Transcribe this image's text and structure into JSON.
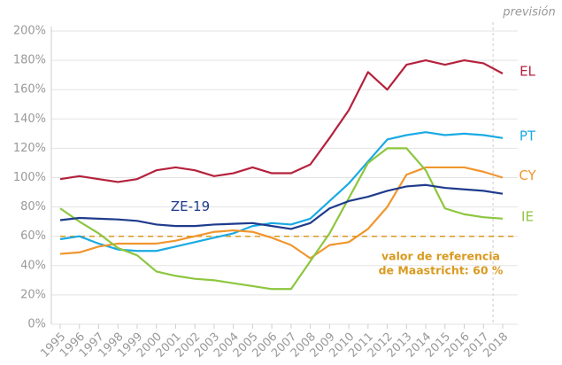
{
  "chart_data": {
    "type": "line",
    "x": [
      1995,
      1996,
      1997,
      1998,
      1999,
      2000,
      2001,
      2002,
      2003,
      2004,
      2005,
      2006,
      2007,
      2008,
      2009,
      2010,
      2011,
      2012,
      2013,
      2014,
      2015,
      2016,
      2017,
      2018
    ],
    "series": [
      {
        "name": "EL",
        "color": "#b5213c",
        "values": [
          99,
          101,
          99,
          97,
          99,
          105,
          107,
          105,
          101,
          103,
          107,
          103,
          103,
          109,
          127,
          146,
          172,
          160,
          177,
          180,
          177,
          180,
          178,
          171
        ]
      },
      {
        "name": "PT",
        "color": "#1aaae3",
        "values": [
          58,
          60,
          55,
          51,
          50,
          50,
          53,
          56,
          59,
          62,
          67,
          69,
          68,
          72,
          84,
          96,
          111,
          126,
          129,
          131,
          129,
          130,
          129,
          127
        ]
      },
      {
        "name": "CY",
        "color": "#f0962e",
        "values": [
          48,
          49,
          53,
          55,
          55,
          55,
          57,
          60,
          63,
          64,
          63,
          59,
          54,
          45,
          54,
          56,
          65,
          80,
          102,
          107,
          107,
          107,
          104,
          100
        ]
      },
      {
        "name": "IE",
        "color": "#8dc63f",
        "values": [
          79,
          70,
          62,
          52,
          47,
          36,
          33,
          31,
          30,
          28,
          26,
          24,
          24,
          43,
          62,
          86,
          110,
          120,
          120,
          105,
          79,
          75,
          73,
          72
        ]
      },
      {
        "name": "ZE-19",
        "color": "#1f3b8c",
        "values": [
          71,
          72.5,
          72,
          71.5,
          70.5,
          68,
          67,
          67,
          68,
          68.5,
          69,
          67,
          65,
          69,
          79,
          84,
          87,
          91,
          94,
          95,
          93,
          92,
          91,
          89
        ]
      }
    ],
    "reference": {
      "value": 60,
      "color": "#d99a1f",
      "label": [
        "valor de referencia",
        "de Maastricht: 60 %"
      ]
    },
    "forecast": {
      "x": 2017.5,
      "label": "previsión"
    },
    "xlim": [
      1995,
      2018
    ],
    "ylim": [
      0,
      200
    ],
    "yticks": [
      {
        "value": 0,
        "label": "0%"
      },
      {
        "value": 20,
        "label": "20%"
      },
      {
        "value": 40,
        "label": "40%"
      },
      {
        "value": 60,
        "label": "60%"
      },
      {
        "value": 80,
        "label": "80%"
      },
      {
        "value": 100,
        "label": "100%"
      },
      {
        "value": 120,
        "label": "120%"
      },
      {
        "value": 140,
        "label": "140%"
      },
      {
        "value": 160,
        "label": "160%"
      },
      {
        "value": 180,
        "label": "180%"
      },
      {
        "value": 200,
        "label": "200%"
      }
    ],
    "grid": true
  }
}
